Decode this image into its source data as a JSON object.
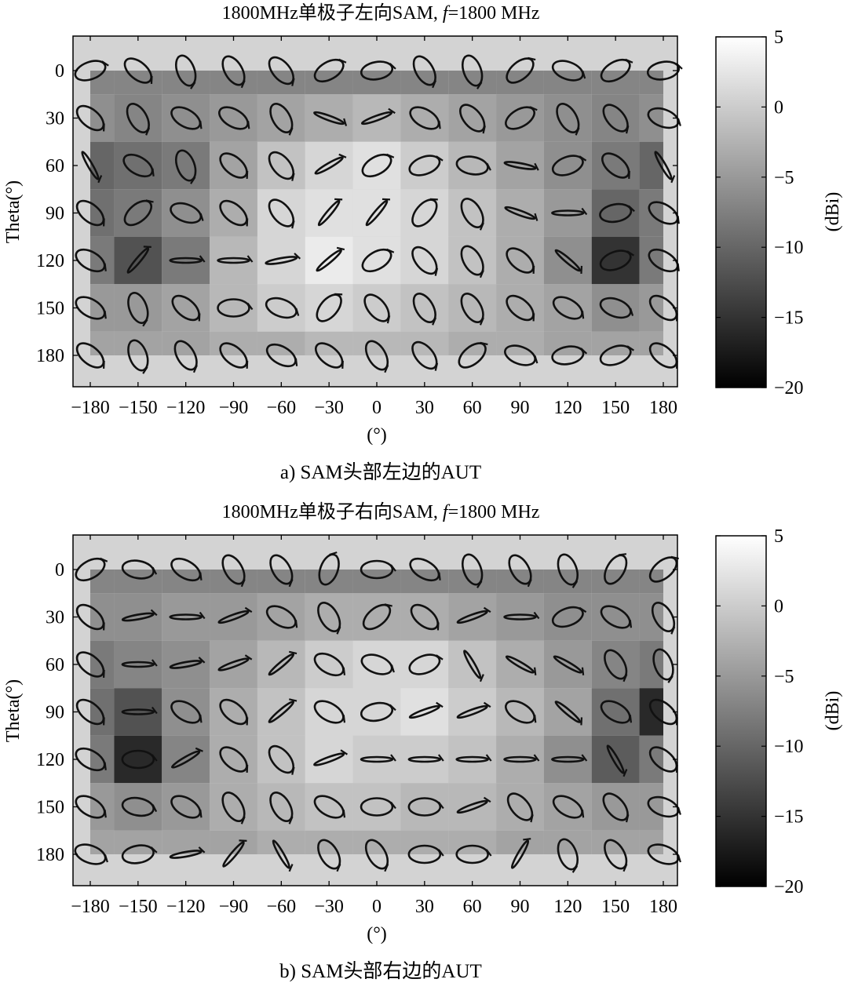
{
  "charts": [
    {
      "id": "a",
      "title": "1800MHz单极子左向SAM, ",
      "title_f": "f",
      "title_tail": "=1800 MHz",
      "caption": "a) SAM头部左边的AUT",
      "xlabel": "(°)",
      "ylabel": "Theta(°)",
      "colorbar_label": "(dBi)"
    },
    {
      "id": "b",
      "title": "1800MHz单极子右向SAM, ",
      "title_f": "f",
      "title_tail": "=1800 MHz",
      "caption": "b) SAM头部右边的AUT",
      "xlabel": "(°)",
      "ylabel": "Theta(°)",
      "colorbar_label": "(dBi)"
    }
  ],
  "chart_data": [
    {
      "type": "heatmap",
      "x_ticks": [
        "−180",
        "−150",
        "−120",
        "−90",
        "−60",
        "−30",
        "0",
        "30",
        "60",
        "90",
        "120",
        "150",
        "180"
      ],
      "y_ticks": [
        "0",
        "30",
        "60",
        "90",
        "120",
        "150",
        "180"
      ],
      "colorbar_ticks": [
        "5",
        "0",
        "−5",
        "−10",
        "−15",
        "−20"
      ],
      "x_values": [
        -180,
        -150,
        -120,
        -90,
        -60,
        -30,
        0,
        30,
        60,
        90,
        120,
        150,
        180
      ],
      "y_values": [
        0,
        30,
        60,
        90,
        120,
        150,
        180
      ],
      "xlim": [
        -180,
        180
      ],
      "ylim": [
        0,
        180
      ],
      "clim": [
        -20,
        5
      ],
      "colormap": "gray",
      "values": [
        [
          -7,
          -7,
          -7,
          -7,
          -7,
          -7,
          -7,
          -7,
          -7,
          -7,
          -7,
          -7,
          -7
        ],
        [
          -6,
          -7,
          -6,
          -5,
          -4,
          -3,
          -2,
          -3,
          -4,
          -5,
          -6,
          -7,
          -6
        ],
        [
          -10,
          -9,
          -8,
          -4,
          -1,
          1,
          2,
          0,
          -2,
          -4,
          -6,
          -8,
          -10
        ],
        [
          -9,
          -8,
          -6,
          -3,
          1,
          2,
          2,
          1,
          -1,
          -3,
          -5,
          -10,
          -8
        ],
        [
          -8,
          -12,
          -8,
          -2,
          1,
          3,
          2,
          1,
          -1,
          -3,
          -6,
          -15,
          -8
        ],
        [
          -5,
          -5,
          -4,
          -2,
          0,
          1,
          0,
          -1,
          -2,
          -3,
          -4,
          -6,
          -5
        ],
        [
          -4,
          -4,
          -4,
          -3,
          -3,
          -2,
          -2,
          -2,
          -3,
          -3,
          -4,
          -4,
          -4
        ]
      ]
    },
    {
      "type": "heatmap",
      "x_ticks": [
        "−180",
        "−150",
        "−120",
        "−90",
        "−60",
        "−30",
        "0",
        "30",
        "60",
        "90",
        "120",
        "150",
        "180"
      ],
      "y_ticks": [
        "0",
        "30",
        "60",
        "90",
        "120",
        "150",
        "180"
      ],
      "colorbar_ticks": [
        "5",
        "0",
        "−5",
        "−10",
        "−15",
        "−20"
      ],
      "x_values": [
        -180,
        -150,
        -120,
        -90,
        -60,
        -30,
        0,
        30,
        60,
        90,
        120,
        150,
        180
      ],
      "y_values": [
        0,
        30,
        60,
        90,
        120,
        150,
        180
      ],
      "xlim": [
        -180,
        180
      ],
      "ylim": [
        0,
        180
      ],
      "clim": [
        -20,
        5
      ],
      "colormap": "gray",
      "values": [
        [
          -7,
          -7,
          -7,
          -7,
          -7,
          -7,
          -7,
          -7,
          -7,
          -7,
          -7,
          -7,
          -7
        ],
        [
          -6,
          -6,
          -5,
          -5,
          -4,
          -3,
          -3,
          -3,
          -4,
          -5,
          -6,
          -6,
          -6
        ],
        [
          -8,
          -7,
          -6,
          -4,
          -2,
          0,
          1,
          1,
          -1,
          -3,
          -5,
          -7,
          -8
        ],
        [
          -9,
          -12,
          -6,
          -3,
          -1,
          1,
          1,
          2,
          0,
          -2,
          -4,
          -9,
          -16
        ],
        [
          -8,
          -16,
          -7,
          -3,
          -1,
          1,
          0,
          0,
          -1,
          -3,
          -6,
          -11,
          -8
        ],
        [
          -5,
          -6,
          -5,
          -3,
          -2,
          -1,
          -1,
          -2,
          -2,
          -3,
          -4,
          -5,
          -5
        ],
        [
          -4,
          -4,
          -4,
          -4,
          -3,
          -3,
          -3,
          -3,
          -3,
          -4,
          -4,
          -4,
          -4
        ]
      ]
    }
  ]
}
